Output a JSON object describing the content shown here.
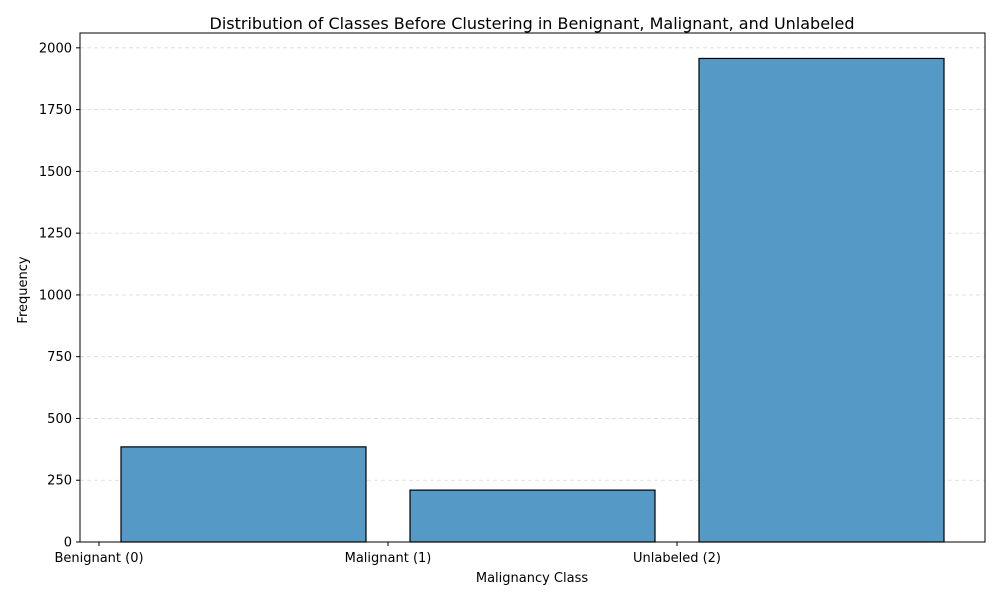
{
  "chart_data": {
    "type": "bar",
    "title": "Distribution of Classes Before Clustering in Benignant, Malignant, and Unlabeled",
    "xlabel": "Malignancy Class",
    "ylabel": "Frequency",
    "categories": [
      "Benignant (0)",
      "Malignant (1)",
      "Unlabeled (2)"
    ],
    "values": [
      385,
      210,
      1957
    ],
    "ylim": [
      0,
      2060
    ],
    "yticks": [
      0,
      250,
      500,
      750,
      1000,
      1250,
      1500,
      1750,
      2000
    ],
    "grid": "y-dashed",
    "bar_color": "#5599c7",
    "edge_color": "#000000"
  }
}
